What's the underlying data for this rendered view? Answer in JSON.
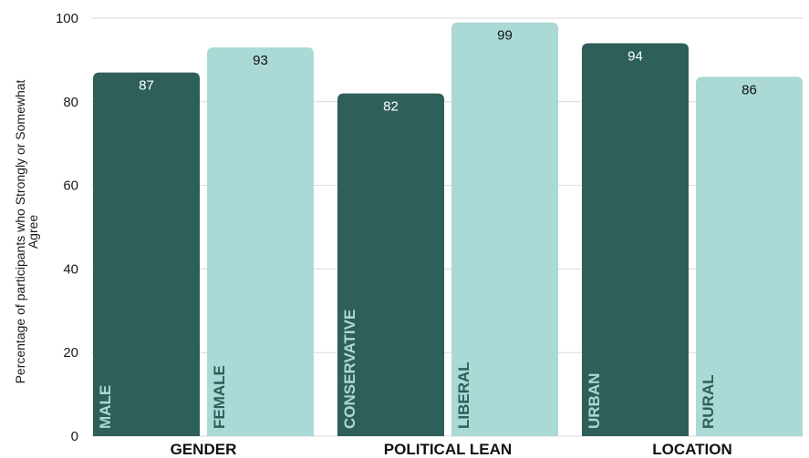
{
  "chart_data": {
    "type": "bar",
    "ylabel": "Percentage of participants who Strongly or Somewhat Agree",
    "ylim": [
      0,
      100
    ],
    "yticks": [
      0,
      20,
      40,
      60,
      80,
      100
    ],
    "grid": true,
    "legend": "none",
    "colors": {
      "dark": "#2e5f59",
      "light": "#abd9d6",
      "dark_text": "#ffffff",
      "light_text": "#111111",
      "dark_bar_label": "#abd9d6",
      "light_bar_label": "#2e5f59"
    },
    "groups": [
      {
        "name": "GENDER",
        "bars": [
          {
            "label": "MALE",
            "value": 87,
            "tone": "dark"
          },
          {
            "label": "FEMALE",
            "value": 93,
            "tone": "light"
          }
        ]
      },
      {
        "name": "POLITICAL LEAN",
        "bars": [
          {
            "label": "CONSERVATIVE",
            "value": 82,
            "tone": "dark"
          },
          {
            "label": "LIBERAL",
            "value": 99,
            "tone": "light"
          }
        ]
      },
      {
        "name": "LOCATION",
        "bars": [
          {
            "label": "URBAN",
            "value": 94,
            "tone": "dark"
          },
          {
            "label": "RURAL",
            "value": 86,
            "tone": "light"
          }
        ]
      }
    ]
  }
}
